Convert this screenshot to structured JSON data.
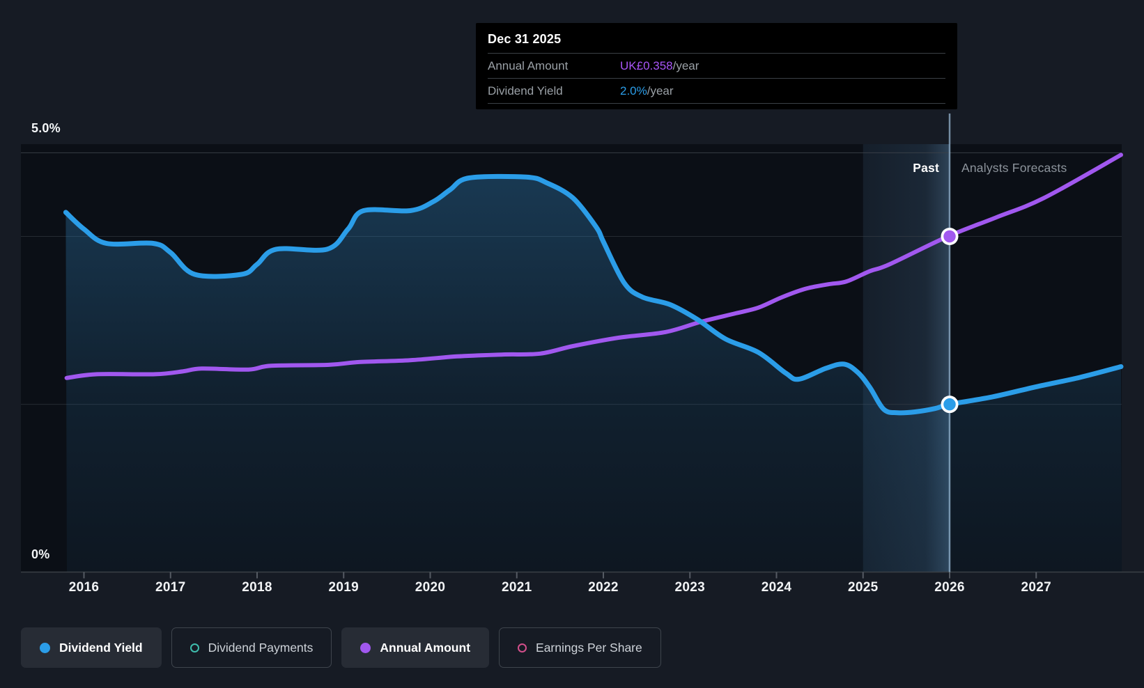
{
  "tooltip": {
    "date": "Dec 31 2025",
    "rows": [
      {
        "label": "Annual Amount",
        "value": "UK£0.358",
        "suffix": "/year",
        "color": "#a855f7"
      },
      {
        "label": "Dividend Yield",
        "value": "2.0%",
        "suffix": "/year",
        "color": "#2b9de8"
      }
    ]
  },
  "y_axis": {
    "top": "5.0%",
    "bottom": "0%"
  },
  "annotations": {
    "past": "Past",
    "forecast": "Analysts Forecasts"
  },
  "legend": {
    "items": [
      {
        "label": "Dividend Yield",
        "color": "#2b9de8",
        "filled": true,
        "active": true
      },
      {
        "label": "Dividend Payments",
        "color": "#3fbdad",
        "filled": false,
        "active": false
      },
      {
        "label": "Annual Amount",
        "color": "#a158ef",
        "filled": true,
        "active": true
      },
      {
        "label": "Earnings Per Share",
        "color": "#d34f8b",
        "filled": false,
        "active": false
      }
    ]
  },
  "colors": {
    "background": "#161b24",
    "plot_background": "#0b0f16",
    "dividend_yield_line": "#2b9de8",
    "annual_amount_line": "#a158ef",
    "gridline": "#3c424a",
    "hover_line": "#a8cbe8",
    "tooltip_background": "#000000"
  },
  "chart_data": {
    "type": "line",
    "title": "Dividend yield history and analysts forecast",
    "x_tick_labels": [
      "2016",
      "2017",
      "2018",
      "2019",
      "2020",
      "2021",
      "2022",
      "2023",
      "2024",
      "2025",
      "2026",
      "2027"
    ],
    "x_range_years": [
      2015.79,
      2027.98
    ],
    "y_axis_pct_range": [
      0,
      5
    ],
    "y_tick_labels": [
      "5.0%",
      "0%"
    ],
    "gridline_pct_values": [
      5.0,
      4.0,
      2.0,
      0.0
    ],
    "past_forecast_divider_year": 2026.0,
    "highlight_band_years": [
      2025.0,
      2026.0
    ],
    "hover_point": {
      "date": "Dec 31 2025",
      "year": 2026.0,
      "dividend_yield_pct": 2.0,
      "annual_amount_gbp": 0.358
    },
    "legend_position": "bottom",
    "series": [
      {
        "name": "Dividend Yield",
        "unit": "%",
        "axis": "pct",
        "has_area_fill": true,
        "marker": {
          "year": 2026.0,
          "value": 2.0
        },
        "points": [
          [
            2015.79,
            4.29
          ],
          [
            2016.0,
            4.09
          ],
          [
            2016.26,
            3.92
          ],
          [
            2016.8,
            3.92
          ],
          [
            2017.0,
            3.81
          ],
          [
            2017.28,
            3.55
          ],
          [
            2017.82,
            3.55
          ],
          [
            2018.0,
            3.67
          ],
          [
            2018.22,
            3.85
          ],
          [
            2018.81,
            3.85
          ],
          [
            2019.05,
            4.09
          ],
          [
            2019.23,
            4.31
          ],
          [
            2019.77,
            4.31
          ],
          [
            2020.04,
            4.42
          ],
          [
            2020.23,
            4.56
          ],
          [
            2020.45,
            4.7
          ],
          [
            2021.11,
            4.71
          ],
          [
            2021.35,
            4.64
          ],
          [
            2021.65,
            4.46
          ],
          [
            2021.92,
            4.11
          ],
          [
            2022.0,
            3.94
          ],
          [
            2022.24,
            3.45
          ],
          [
            2022.45,
            3.28
          ],
          [
            2022.77,
            3.19
          ],
          [
            2023.09,
            3.01
          ],
          [
            2023.41,
            2.78
          ],
          [
            2023.79,
            2.62
          ],
          [
            2024.11,
            2.37
          ],
          [
            2024.26,
            2.3
          ],
          [
            2024.57,
            2.43
          ],
          [
            2024.78,
            2.48
          ],
          [
            2024.94,
            2.38
          ],
          [
            2025.08,
            2.2
          ],
          [
            2025.24,
            1.94
          ],
          [
            2025.4,
            1.9
          ],
          [
            2025.6,
            1.91
          ],
          [
            2025.83,
            1.95
          ],
          [
            2026.0,
            2.0
          ],
          [
            2026.5,
            2.09
          ],
          [
            2027.0,
            2.21
          ],
          [
            2027.5,
            2.32
          ],
          [
            2027.98,
            2.45
          ]
        ]
      },
      {
        "name": "Annual Amount",
        "unit": "UK£/year",
        "axis": "amt",
        "has_area_fill": false,
        "marker": {
          "year": 2026.0,
          "value": 0.358
        },
        "points": [
          [
            2015.8,
            0.207
          ],
          [
            2016.15,
            0.211
          ],
          [
            2016.82,
            0.211
          ],
          [
            2017.14,
            0.214
          ],
          [
            2017.36,
            0.217
          ],
          [
            2017.9,
            0.216
          ],
          [
            2018.16,
            0.22
          ],
          [
            2018.83,
            0.221
          ],
          [
            2019.18,
            0.224
          ],
          [
            2019.77,
            0.226
          ],
          [
            2020.31,
            0.23
          ],
          [
            2020.84,
            0.232
          ],
          [
            2021.27,
            0.233
          ],
          [
            2021.65,
            0.241
          ],
          [
            2022.18,
            0.25
          ],
          [
            2022.72,
            0.256
          ],
          [
            2023.13,
            0.267
          ],
          [
            2023.53,
            0.276
          ],
          [
            2023.79,
            0.282
          ],
          [
            2024.06,
            0.293
          ],
          [
            2024.33,
            0.302
          ],
          [
            2024.6,
            0.307
          ],
          [
            2024.81,
            0.31
          ],
          [
            2025.08,
            0.321
          ],
          [
            2025.3,
            0.328
          ],
          [
            2025.98,
            0.358
          ],
          [
            2026.53,
            0.378
          ],
          [
            2027.09,
            0.399
          ],
          [
            2027.98,
            0.445
          ]
        ]
      }
    ],
    "inactive_series": [
      "Dividend Payments",
      "Earnings Per Share"
    ]
  }
}
